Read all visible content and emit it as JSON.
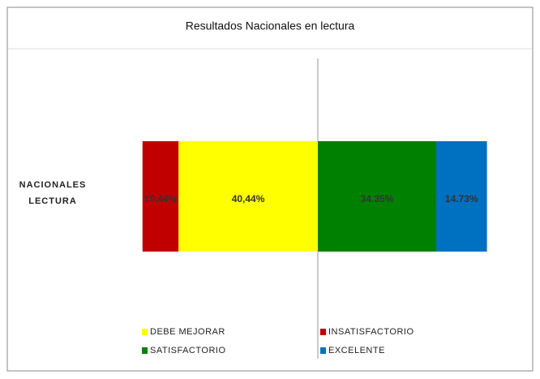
{
  "chart_data": {
    "type": "diverging-bar",
    "title": "Resultados Nacionales en lectura",
    "categories": [
      "NACIONALES LECTURA"
    ],
    "series": [
      {
        "name": "DEBE MEJORAR",
        "color": "#ffff00",
        "direction": "negative",
        "values": [
          40.44
        ],
        "value_labels": [
          "40,44%"
        ]
      },
      {
        "name": "INSATISFACTORIO",
        "color": "#c00000",
        "direction": "negative",
        "values": [
          10.44
        ],
        "value_labels": [
          "10,44%"
        ]
      },
      {
        "name": "SATISFACTORIO",
        "color": "#008000",
        "direction": "positive",
        "values": [
          34.35
        ],
        "value_labels": [
          "34.35%"
        ]
      },
      {
        "name": "EXCELENTE",
        "color": "#0070c0",
        "direction": "positive",
        "values": [
          14.73
        ],
        "value_labels": [
          "14.73%"
        ]
      }
    ],
    "legend": "bottom"
  }
}
